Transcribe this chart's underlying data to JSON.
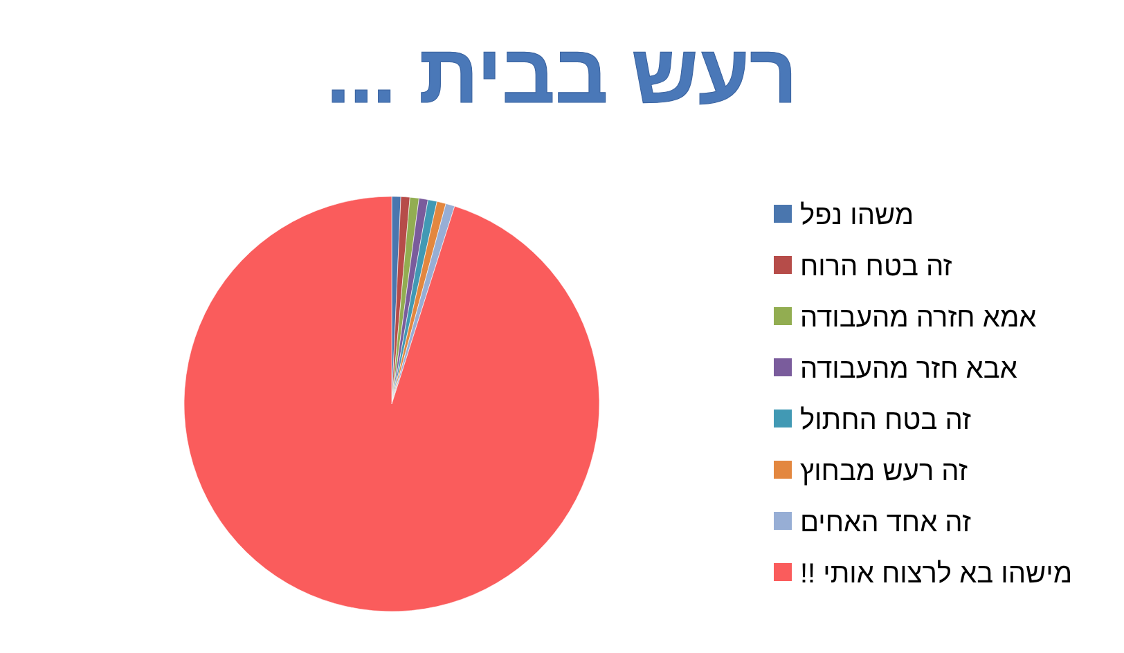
{
  "chart_data": {
    "type": "pie",
    "title": "רעש בבית ...",
    "categories": [
      "משהו נפל",
      "זה בטח הרוח",
      "אמא חזרה מהעבודה",
      "אבא חזר מהעבודה",
      "זה בטח החתול",
      "זה רעש מבחוץ",
      "זה אחד האחים",
      "מישהו בא לרצוח אותי !!"
    ],
    "values": [
      0.7,
      0.7,
      0.7,
      0.7,
      0.7,
      0.7,
      0.7,
      95.1
    ],
    "colors": [
      "#4a76ae",
      "#b64c49",
      "#92ad51",
      "#7a5c9c",
      "#4199b4",
      "#e3873f",
      "#97aed5",
      "#fa5c5c"
    ],
    "legend": "right"
  }
}
